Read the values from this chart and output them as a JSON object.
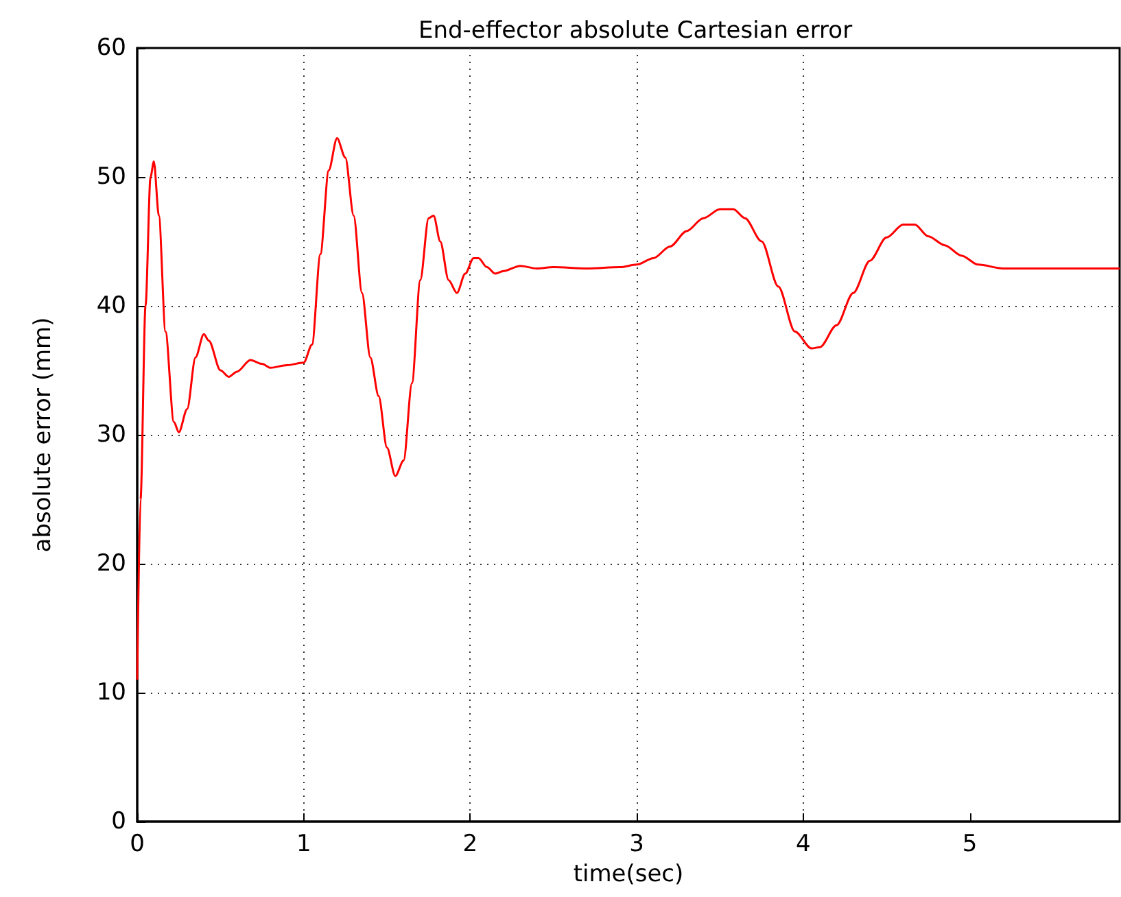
{
  "chart_data": {
    "type": "line",
    "title": "End-effector absolute Cartesian error",
    "xlabel": "time(sec)",
    "ylabel": "absolute error (mm)",
    "x": [
      0,
      0.02,
      0.05,
      0.08,
      0.1,
      0.13,
      0.17,
      0.22,
      0.25,
      0.3,
      0.35,
      0.4,
      0.43,
      0.5,
      0.55,
      0.6,
      0.68,
      0.75,
      0.8,
      0.9,
      1.0,
      1.05,
      1.1,
      1.15,
      1.2,
      1.25,
      1.3,
      1.35,
      1.4,
      1.45,
      1.5,
      1.55,
      1.6,
      1.65,
      1.7,
      1.75,
      1.78,
      1.82,
      1.87,
      1.92,
      1.97,
      2.02,
      2.05,
      2.1,
      2.15,
      2.2,
      2.3,
      2.4,
      2.5,
      2.7,
      2.9,
      3.0,
      3.1,
      3.2,
      3.3,
      3.4,
      3.5,
      3.58,
      3.65,
      3.75,
      3.85,
      3.95,
      4.05,
      4.1,
      4.2,
      4.3,
      4.4,
      4.5,
      4.6,
      4.67,
      4.75,
      4.85,
      4.95,
      5.05,
      5.2,
      5.5,
      5.9
    ],
    "series": [
      {
        "color": "#ff0000",
        "values": [
          11,
          25,
          40,
          50,
          51.2,
          47,
          38,
          31,
          30.2,
          32,
          36,
          37.8,
          37.3,
          35,
          34.5,
          34.9,
          35.8,
          35.5,
          35.2,
          35.4,
          35.6,
          37,
          44,
          50.5,
          53,
          51.5,
          47,
          41,
          36,
          33,
          29,
          26.8,
          28,
          34,
          42,
          46.8,
          47,
          45,
          42,
          41,
          42.5,
          43.7,
          43.7,
          43,
          42.5,
          42.7,
          43.1,
          42.9,
          43,
          42.9,
          43,
          43.2,
          43.7,
          44.6,
          45.8,
          46.8,
          47.5,
          47.5,
          46.8,
          45,
          41.5,
          38,
          36.7,
          36.8,
          38.5,
          41,
          43.5,
          45.3,
          46.3,
          46.3,
          45.4,
          44.7,
          43.9,
          43.2,
          42.9,
          42.9,
          42.9
        ]
      }
    ],
    "xlim": [
      0,
      5.9
    ],
    "xticks": [
      0,
      1,
      2,
      3,
      4,
      5
    ],
    "ylim": [
      0,
      60
    ],
    "yticks": [
      0,
      10,
      20,
      30,
      40,
      50,
      60
    ],
    "grid": true,
    "line_style": "solid",
    "marker": "none"
  }
}
